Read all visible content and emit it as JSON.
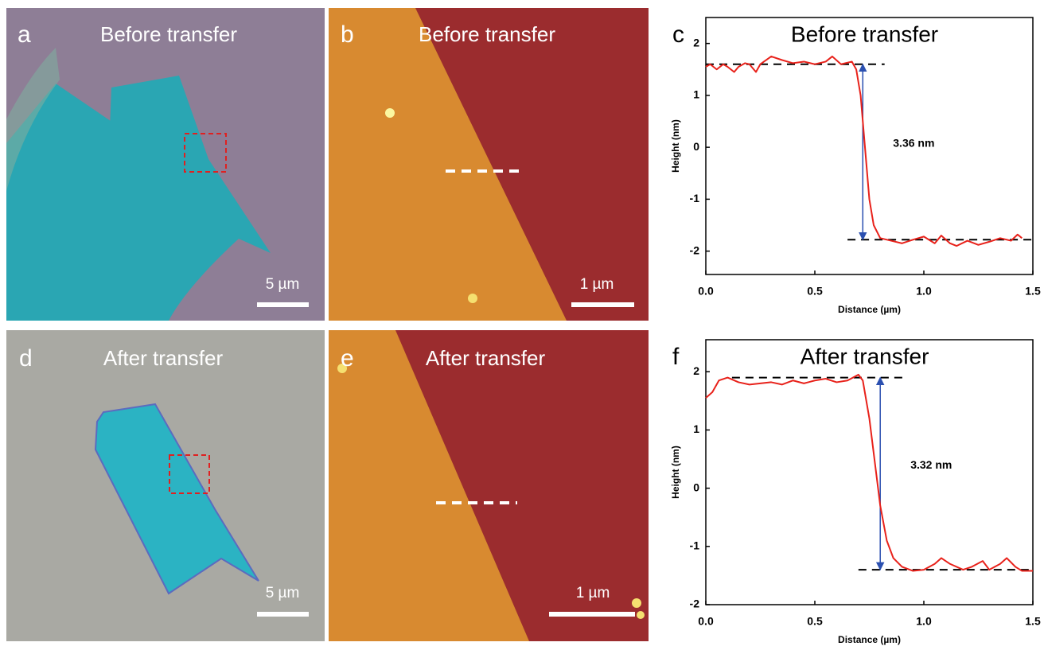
{
  "panels": [
    {
      "letter": "a",
      "title": "Before transfer",
      "scale": "5 µm"
    },
    {
      "letter": "b",
      "title": "Before transfer",
      "scale": "1 µm"
    },
    {
      "letter": "d",
      "title": "After transfer",
      "scale": "5 µm"
    },
    {
      "letter": "e",
      "title": "After transfer",
      "scale": "1 µm"
    }
  ],
  "chart_data": [
    {
      "type": "line",
      "panel_label": "c",
      "title": "Before transfer",
      "x_label": "Distance (µm)",
      "y_label": "Height (nm)",
      "color": "#e8221b",
      "x": [
        0,
        0.02,
        0.05,
        0.08,
        0.1,
        0.13,
        0.15,
        0.18,
        0.2,
        0.23,
        0.25,
        0.3,
        0.35,
        0.4,
        0.45,
        0.5,
        0.55,
        0.58,
        0.62,
        0.67,
        0.69,
        0.71,
        0.73,
        0.75,
        0.77,
        0.8,
        0.85,
        0.9,
        0.95,
        1.0,
        1.05,
        1.08,
        1.12,
        1.15,
        1.2,
        1.25,
        1.3,
        1.35,
        1.4,
        1.43,
        1.45
      ],
      "values": [
        1.55,
        1.6,
        1.5,
        1.6,
        1.55,
        1.45,
        1.55,
        1.62,
        1.6,
        1.45,
        1.6,
        1.75,
        1.68,
        1.62,
        1.65,
        1.6,
        1.65,
        1.75,
        1.6,
        1.65,
        1.5,
        1.0,
        0.0,
        -1.0,
        -1.5,
        -1.75,
        -1.8,
        -1.85,
        -1.78,
        -1.72,
        -1.85,
        -1.7,
        -1.85,
        -1.9,
        -1.8,
        -1.88,
        -1.82,
        -1.75,
        -1.8,
        -1.68,
        -1.75
      ],
      "xlim": [
        0,
        1.5
      ],
      "ylim": [
        -2.45,
        2.5
      ],
      "xticks": [
        {
          "value": 0,
          "label": "0.0"
        },
        0.5,
        {
          "value": 1,
          "label": "1.0"
        },
        1.5
      ],
      "yticks": [
        -2,
        -1,
        0,
        1,
        2
      ],
      "reference_lines": [
        {
          "y": 1.6,
          "x": [
            0,
            0.82
          ]
        },
        {
          "y": -1.78,
          "x": [
            0.65,
            1.5
          ]
        }
      ],
      "arrow": {
        "x": 0.72,
        "y": [
          1.6,
          -1.78
        ]
      },
      "annotation": "3.36 nm"
    },
    {
      "type": "line",
      "panel_label": "f",
      "title": "After transfer",
      "x_label": "Distance (µm)",
      "y_label": "Height (nm)",
      "color": "#e8221b",
      "x": [
        0,
        0.03,
        0.06,
        0.1,
        0.15,
        0.2,
        0.25,
        0.3,
        0.35,
        0.4,
        0.45,
        0.5,
        0.55,
        0.6,
        0.65,
        0.7,
        0.72,
        0.75,
        0.78,
        0.8,
        0.83,
        0.86,
        0.9,
        0.95,
        1.0,
        1.05,
        1.08,
        1.12,
        1.18,
        1.22,
        1.27,
        1.3,
        1.35,
        1.38,
        1.42,
        1.45,
        1.5
      ],
      "values": [
        1.55,
        1.65,
        1.85,
        1.9,
        1.82,
        1.78,
        1.8,
        1.82,
        1.78,
        1.85,
        1.8,
        1.85,
        1.88,
        1.82,
        1.85,
        1.95,
        1.85,
        1.2,
        0.3,
        -0.3,
        -0.9,
        -1.2,
        -1.35,
        -1.42,
        -1.4,
        -1.3,
        -1.2,
        -1.3,
        -1.4,
        -1.35,
        -1.25,
        -1.4,
        -1.3,
        -1.2,
        -1.35,
        -1.42,
        -1.42
      ],
      "xlim": [
        0,
        1.5
      ],
      "ylim": [
        -2,
        2.55
      ],
      "xticks": [
        {
          "value": 0,
          "label": "0.0"
        },
        0.5,
        {
          "value": 1,
          "label": "1.0"
        },
        1.5
      ],
      "yticks": [
        -2,
        -1,
        0,
        1,
        2
      ],
      "reference_lines": [
        {
          "y": 1.9,
          "x": [
            0.12,
            0.92
          ]
        },
        {
          "y": -1.4,
          "x": [
            0.7,
            1.5
          ]
        }
      ],
      "arrow": {
        "x": 0.8,
        "y": [
          1.9,
          -1.4
        ]
      },
      "annotation": "3.32 nm"
    }
  ]
}
